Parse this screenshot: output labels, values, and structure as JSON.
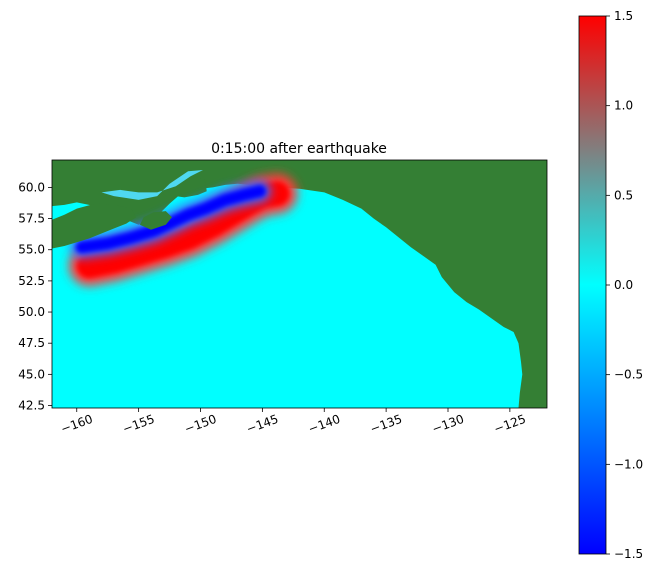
{
  "chart_data": {
    "type": "heatmap",
    "title": "0:15:00 after earthquake",
    "xlabel": "",
    "ylabel": "",
    "xlim": [
      -162.0,
      -122.0
    ],
    "ylim": [
      42.3,
      62.2
    ],
    "x_ticks": [
      -160,
      -155,
      -150,
      -145,
      -140,
      -135,
      -130,
      -125
    ],
    "x_tick_labels": [
      "−160",
      "−155",
      "−150",
      "−145",
      "−140",
      "−135",
      "−130",
      "−125"
    ],
    "y_ticks": [
      45.0,
      47.5,
      50.0,
      52.5,
      55.0,
      57.5,
      60.0,
      42.5
    ],
    "y_tick_labels": [
      "45.0",
      "47.5",
      "50.0",
      "52.5",
      "55.0",
      "57.5",
      "60.0",
      "42.5"
    ],
    "grid": false,
    "colorbar": {
      "range": [
        -1.5,
        1.5
      ],
      "ticks": [
        1.5,
        1.0,
        0.5,
        0.0,
        -0.5,
        -1.0,
        -1.5
      ],
      "tick_labels": [
        "1.5",
        "1.0",
        "0.5",
        "0.0",
        "−0.5",
        "−1.0",
        "−1.5"
      ],
      "colors": [
        "#0000ff",
        "#00ffff",
        "#808080",
        "#ff0000"
      ]
    },
    "colors": {
      "ocean_zero": "#00ffff",
      "land": "#347f34",
      "land_light": "#6fa81e",
      "positive_wave": "#ff0000",
      "negative_wave": "#0000ff"
    },
    "features": {
      "land_outline": [
        [
          -162.0,
          58.5
        ],
        [
          -161.0,
          58.6
        ],
        [
          -160.0,
          58.8
        ],
        [
          -159.0,
          58.6
        ],
        [
          -158.0,
          58.3
        ],
        [
          -157.0,
          57.9
        ],
        [
          -156.0,
          57.4
        ],
        [
          -155.0,
          57.0
        ],
        [
          -154.0,
          57.3
        ],
        [
          -153.2,
          58.0
        ],
        [
          -152.5,
          58.7
        ],
        [
          -151.8,
          59.3
        ],
        [
          -151.0,
          59.6
        ],
        [
          -150.0,
          59.9
        ],
        [
          -149.0,
          60.0
        ],
        [
          -148.0,
          60.2
        ],
        [
          -147.0,
          60.3
        ],
        [
          -146.0,
          60.2
        ],
        [
          -145.0,
          60.1
        ],
        [
          -144.0,
          60.0
        ],
        [
          -142.0,
          59.9
        ],
        [
          -140.0,
          59.6
        ],
        [
          -138.5,
          59.0
        ],
        [
          -137.0,
          58.3
        ],
        [
          -136.0,
          57.5
        ],
        [
          -135.0,
          56.8
        ],
        [
          -134.0,
          56.0
        ],
        [
          -133.0,
          55.2
        ],
        [
          -132.0,
          54.5
        ],
        [
          -131.0,
          53.8
        ],
        [
          -130.5,
          52.8
        ],
        [
          -129.5,
          51.6
        ],
        [
          -128.5,
          50.8
        ],
        [
          -127.5,
          50.2
        ],
        [
          -126.5,
          49.5
        ],
        [
          -125.5,
          48.8
        ],
        [
          -124.7,
          48.4
        ],
        [
          -124.3,
          47.5
        ],
        [
          -124.1,
          46.0
        ],
        [
          -124.0,
          45.0
        ],
        [
          -124.2,
          43.5
        ],
        [
          -124.3,
          42.3
        ],
        [
          -122.0,
          42.3
        ],
        [
          -122.0,
          62.2
        ],
        [
          -162.0,
          62.2
        ]
      ],
      "peninsula_outline": [
        [
          -162.0,
          55.1
        ],
        [
          -161.0,
          55.3
        ],
        [
          -160.0,
          55.6
        ],
        [
          -159.0,
          55.9
        ],
        [
          -158.0,
          56.3
        ],
        [
          -157.0,
          56.7
        ],
        [
          -156.0,
          57.1
        ],
        [
          -155.2,
          57.6
        ],
        [
          -155.6,
          58.3
        ],
        [
          -157.0,
          58.6
        ],
        [
          -158.5,
          58.7
        ],
        [
          -160.0,
          58.3
        ],
        [
          -161.0,
          57.8
        ],
        [
          -162.0,
          57.4
        ]
      ],
      "kodiak_outline": [
        [
          -154.9,
          57.0
        ],
        [
          -154.0,
          56.6
        ],
        [
          -152.8,
          57.0
        ],
        [
          -152.3,
          57.6
        ],
        [
          -152.8,
          58.1
        ],
        [
          -153.8,
          58.0
        ],
        [
          -154.6,
          57.6
        ]
      ],
      "kenai_outline": [
        [
          -152.0,
          59.3
        ],
        [
          -151.3,
          59.2
        ],
        [
          -150.2,
          59.4
        ],
        [
          -149.5,
          59.7
        ],
        [
          -149.6,
          60.6
        ],
        [
          -150.6,
          60.9
        ],
        [
          -151.5,
          60.5
        ]
      ],
      "inlet_outline": [
        [
          -157.0,
          59.3
        ],
        [
          -155.0,
          59.0
        ],
        [
          -153.5,
          59.3
        ],
        [
          -152.5,
          60.3
        ],
        [
          -151.0,
          61.3
        ],
        [
          -149.8,
          61.4
        ],
        [
          -150.8,
          60.9
        ],
        [
          -152.0,
          60.1
        ],
        [
          -153.5,
          59.6
        ],
        [
          -155.0,
          59.6
        ],
        [
          -156.5,
          59.8
        ],
        [
          -158.0,
          59.6
        ]
      ],
      "wave_axis": [
        [
          -159.0,
          53.7
        ],
        [
          -157.0,
          54.1
        ],
        [
          -155.0,
          54.7
        ],
        [
          -153.0,
          55.3
        ],
        [
          -151.0,
          56.0
        ],
        [
          -149.0,
          57.0
        ],
        [
          -147.5,
          57.9
        ],
        [
          -146.0,
          58.8
        ],
        [
          -145.0,
          59.3
        ],
        [
          -143.8,
          59.5
        ]
      ],
      "trough_axis": [
        [
          -159.6,
          55.2
        ],
        [
          -157.5,
          55.5
        ],
        [
          -155.5,
          56.0
        ],
        [
          -153.8,
          56.5
        ],
        [
          -152.5,
          57.1
        ],
        [
          -151.0,
          57.8
        ],
        [
          -149.6,
          58.3
        ],
        [
          -148.0,
          59.0
        ],
        [
          -146.5,
          59.4
        ],
        [
          -145.2,
          59.7
        ]
      ]
    }
  }
}
